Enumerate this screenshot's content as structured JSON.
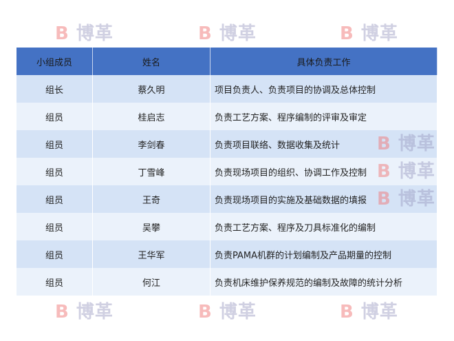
{
  "table": {
    "headers": [
      "小组成员",
      "姓名",
      "具体负责工作"
    ],
    "rows": [
      [
        "组长",
        "蔡久明",
        "项目负责人、负责项目的协调及总体控制"
      ],
      [
        "组员",
        "桂启志",
        "负责工艺方案、程序编制的评审及审定"
      ],
      [
        "组员",
        "李剑春",
        "负责项目联络、数据收集及统计"
      ],
      [
        "组员",
        "丁雪峰",
        "负责现场项目的组织、协调工作及控制"
      ],
      [
        "组员",
        "王奇",
        "负责现场项目的实施及基础数据的填报"
      ],
      [
        "组员",
        "吴攀",
        "负责工艺方案、程序及刀具标准化的编制"
      ],
      [
        "组员",
        "王华军",
        "负责PAMA机群的计划编制及产品期量的控制"
      ],
      [
        "组员",
        "何江",
        "负责机床维护保养规范的编制及故障的统计分析"
      ]
    ]
  },
  "watermark": {
    "text": "博革",
    "logo_letter": "B"
  },
  "colors": {
    "header": "#4472c4",
    "row_dark": "#d5e3f6",
    "row_light": "#ebf2fb"
  }
}
